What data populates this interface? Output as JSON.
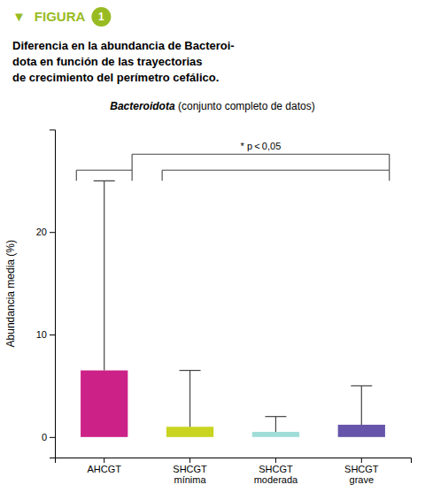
{
  "chart_data": {
    "type": "bar",
    "title": "Diferencia en la abundancia de Bacteroi-\ndota en función de las trayectorias\nde crecimiento del perímetro cefálico.",
    "subtitle": [
      "Bacteroidota",
      " (conjunto completo de datos)"
    ],
    "annotations": [
      "▼",
      "FIGURA",
      "1",
      "* p < 0,05"
    ],
    "categories": [
      "AHCGT",
      "SHCGT\nmínima",
      "SHCGT\nmoderada",
      "SHCGT\ngrave"
    ],
    "values": [
      6.5,
      1.0,
      0.5,
      1.2
    ],
    "whisker_tops": [
      25.0,
      6.5,
      2.0,
      5.0
    ],
    "colors": [
      "#cc2288",
      "#c8d420",
      "#a0ddd8",
      "#6655aa"
    ],
    "ylabel": "Abundancia media (%)",
    "ylim": [
      -2,
      30
    ],
    "yticks": [
      0,
      10,
      20
    ],
    "grid": false
  }
}
